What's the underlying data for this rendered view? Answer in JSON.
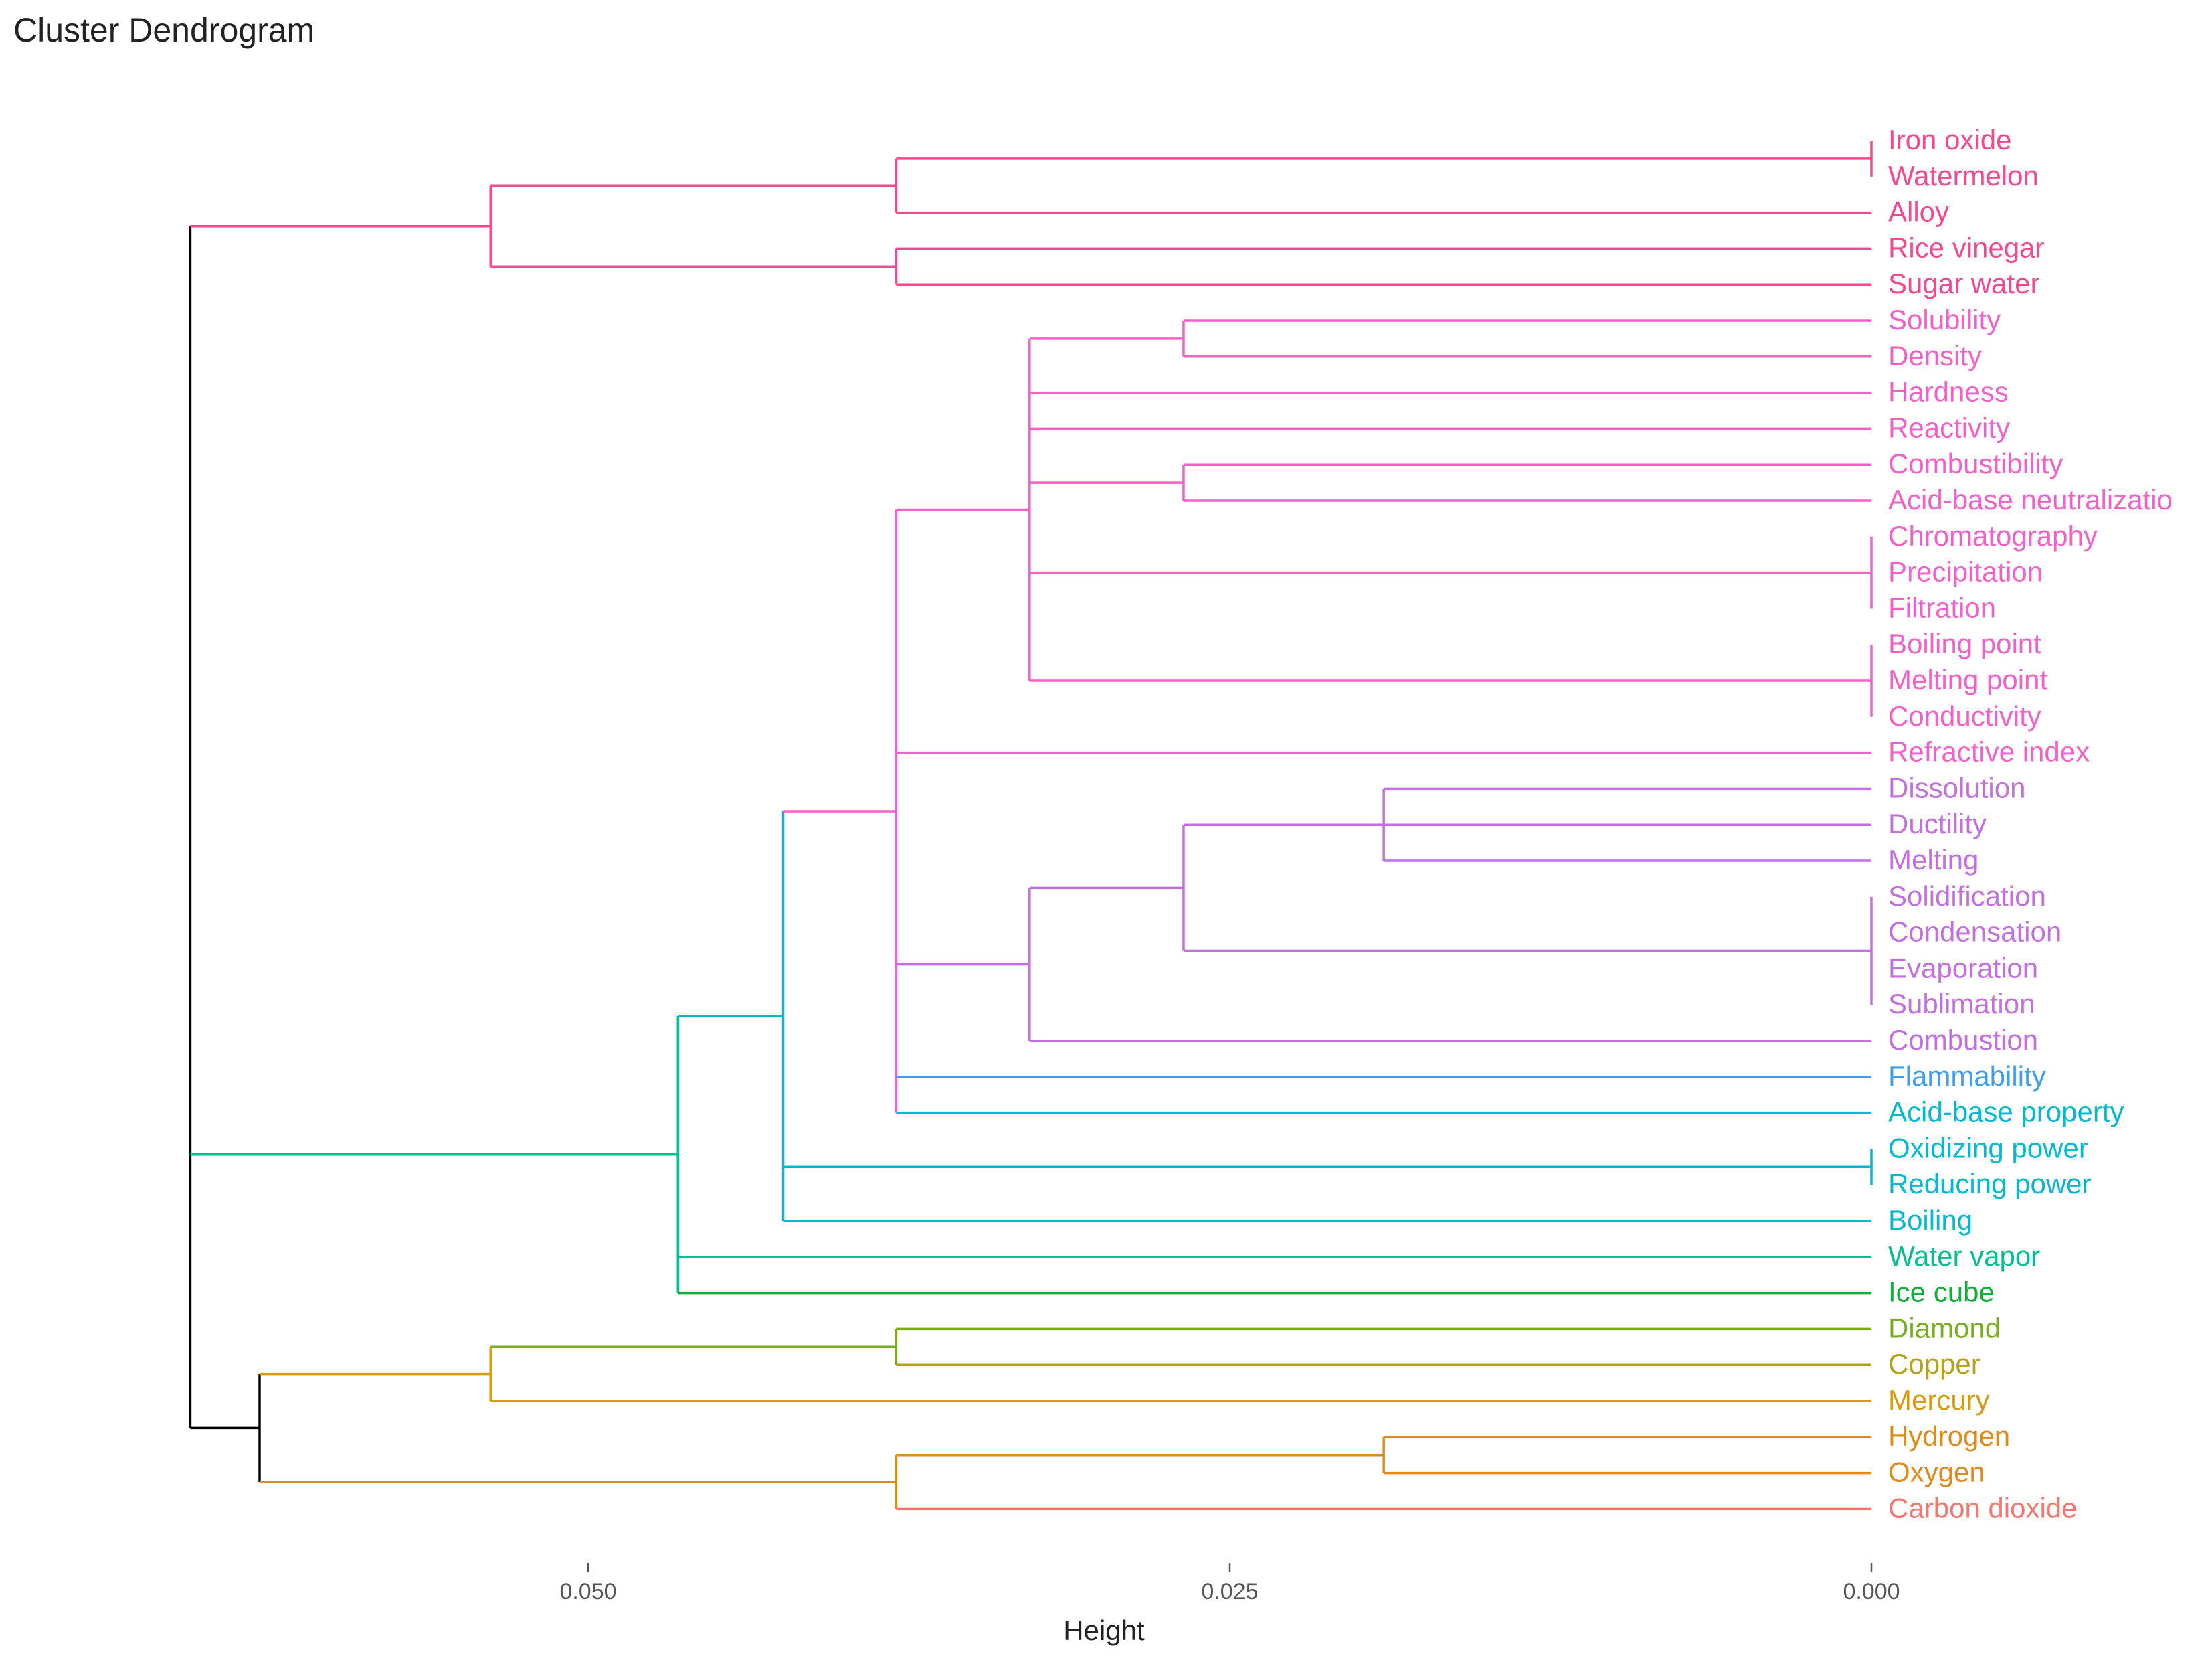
{
  "chart_data": {
    "type": "dendrogram",
    "title": "Cluster Dendrogram",
    "xlabel": "Height",
    "orientation": "horizontal",
    "xlim": [
      0.065,
      0.0
    ],
    "ticks": [
      0.05,
      0.025,
      0.0
    ],
    "tick_labels": [
      "0.050",
      "0.025",
      "0.000"
    ],
    "leaves": [
      {
        "label": "Iron oxide",
        "color": "#F7478F"
      },
      {
        "label": "Watermelon",
        "color": "#F7478F"
      },
      {
        "label": "Alloy",
        "color": "#F7478F"
      },
      {
        "label": "Rice vinegar",
        "color": "#F7478F"
      },
      {
        "label": "Sugar water",
        "color": "#F7478F"
      },
      {
        "label": "Solubility",
        "color": "#F560C8"
      },
      {
        "label": "Density",
        "color": "#F560C8"
      },
      {
        "label": "Hardness",
        "color": "#F560C8"
      },
      {
        "label": "Reactivity",
        "color": "#F560C8"
      },
      {
        "label": "Combustibility",
        "color": "#F560C8"
      },
      {
        "label": "Acid-base neutralizatio",
        "color": "#F560C8"
      },
      {
        "label": "Chromatography",
        "color": "#F560C8"
      },
      {
        "label": "Precipitation",
        "color": "#F560C8"
      },
      {
        "label": "Filtration",
        "color": "#F560C8"
      },
      {
        "label": "Boiling point",
        "color": "#F560C8"
      },
      {
        "label": "Melting point",
        "color": "#F560C8"
      },
      {
        "label": "Conductivity",
        "color": "#F560C8"
      },
      {
        "label": "Refractive index",
        "color": "#F560C8"
      },
      {
        "label": "Dissolution",
        "color": "#C36FE0"
      },
      {
        "label": "Ductility",
        "color": "#C36FE0"
      },
      {
        "label": "Melting",
        "color": "#C36FE0"
      },
      {
        "label": "Solidification",
        "color": "#C36FE0"
      },
      {
        "label": "Condensation",
        "color": "#C36FE0"
      },
      {
        "label": "Evaporation",
        "color": "#C36FE0"
      },
      {
        "label": "Sublimation",
        "color": "#C36FE0"
      },
      {
        "label": "Combustion",
        "color": "#C36FE0"
      },
      {
        "label": "Flammability",
        "color": "#3E9EF0"
      },
      {
        "label": "Acid-base property",
        "color": "#00B8D0"
      },
      {
        "label": "Oxidizing power",
        "color": "#00B8D0"
      },
      {
        "label": "Reducing power",
        "color": "#00B8D0"
      },
      {
        "label": "Boiling",
        "color": "#00B8D0"
      },
      {
        "label": "Water vapor",
        "color": "#00BE8F"
      },
      {
        "label": "Ice cube",
        "color": "#14AE3A"
      },
      {
        "label": "Diamond",
        "color": "#79AD1F"
      },
      {
        "label": "Copper",
        "color": "#B5A21C"
      },
      {
        "label": "Mercury",
        "color": "#D99A0D"
      },
      {
        "label": "Hydrogen",
        "color": "#E08A1E"
      },
      {
        "label": "Oxygen",
        "color": "#E08A1E"
      },
      {
        "label": "Carbon dioxide",
        "color": "#F8766D"
      }
    ],
    "merges": [
      {
        "id": "a",
        "height": 0.0,
        "children": [
          0,
          1
        ],
        "color": "#F7478F"
      },
      {
        "id": "b",
        "height": 0.038,
        "children": [
          "a",
          2
        ],
        "color": "#F7478F"
      },
      {
        "id": "c",
        "height": 0.038,
        "children": [
          3,
          4
        ],
        "color": "#F7478F"
      },
      {
        "id": "d",
        "height": 0.0538,
        "children": [
          "b",
          "c"
        ],
        "color": "#F7478F"
      },
      {
        "id": "e",
        "height": 0.0268,
        "children": [
          5,
          6
        ],
        "color": "#F560C8"
      },
      {
        "id": "f",
        "height": 0.0268,
        "children": [
          9,
          10
        ],
        "color": "#F560C8"
      },
      {
        "id": "g",
        "height": 0.0,
        "children": [
          11,
          12,
          13
        ],
        "color": "#F560C8"
      },
      {
        "id": "h",
        "height": 0.0,
        "children": [
          14,
          15,
          16
        ],
        "color": "#F560C8"
      },
      {
        "id": "i",
        "height": 0.0328,
        "children": [
          "e",
          7,
          8,
          "f",
          "g",
          "h"
        ],
        "color": "#F560C8"
      },
      {
        "id": "j",
        "height": 0.019,
        "children": [
          18,
          19,
          20
        ],
        "color": "#C36FE0"
      },
      {
        "id": "k",
        "height": 0.0,
        "children": [
          21,
          22,
          23,
          24
        ],
        "color": "#C36FE0"
      },
      {
        "id": "l",
        "height": 0.0268,
        "children": [
          "j",
          "k"
        ],
        "color": "#C36FE0"
      },
      {
        "id": "m",
        "height": 0.0328,
        "children": [
          "l",
          25
        ],
        "color": "#C36FE0"
      },
      {
        "id": "n",
        "height": 0.038,
        "children": [
          "i",
          17,
          "m",
          26,
          27
        ],
        "color": "#F560C8"
      },
      {
        "id": "o",
        "height": 0.0,
        "children": [
          28,
          29
        ],
        "color": "#00B8D0"
      },
      {
        "id": "p",
        "height": 0.0424,
        "children": [
          "n",
          "o",
          30
        ],
        "color": "#00B8D0"
      },
      {
        "id": "q",
        "height": 0.0465,
        "children": [
          "p",
          31,
          32
        ],
        "color": "#00BE8F"
      },
      {
        "id": "r",
        "height": 0.038,
        "children": [
          33,
          34
        ],
        "color": "#79AD1F"
      },
      {
        "id": "s",
        "height": 0.0538,
        "children": [
          "r",
          35
        ],
        "color": "#D99A0D"
      },
      {
        "id": "t",
        "height": 0.019,
        "children": [
          36,
          37
        ],
        "color": "#E08A1E"
      },
      {
        "id": "u",
        "height": 0.038,
        "children": [
          "t",
          38
        ],
        "color": "#E08A1E"
      },
      {
        "id": "v",
        "height": 0.0628,
        "children": [
          "s",
          "u"
        ],
        "color": "#000000"
      },
      {
        "id": "w",
        "height": 0.0655,
        "children": [
          "d",
          "q",
          "v"
        ],
        "color": "#000000"
      }
    ]
  }
}
